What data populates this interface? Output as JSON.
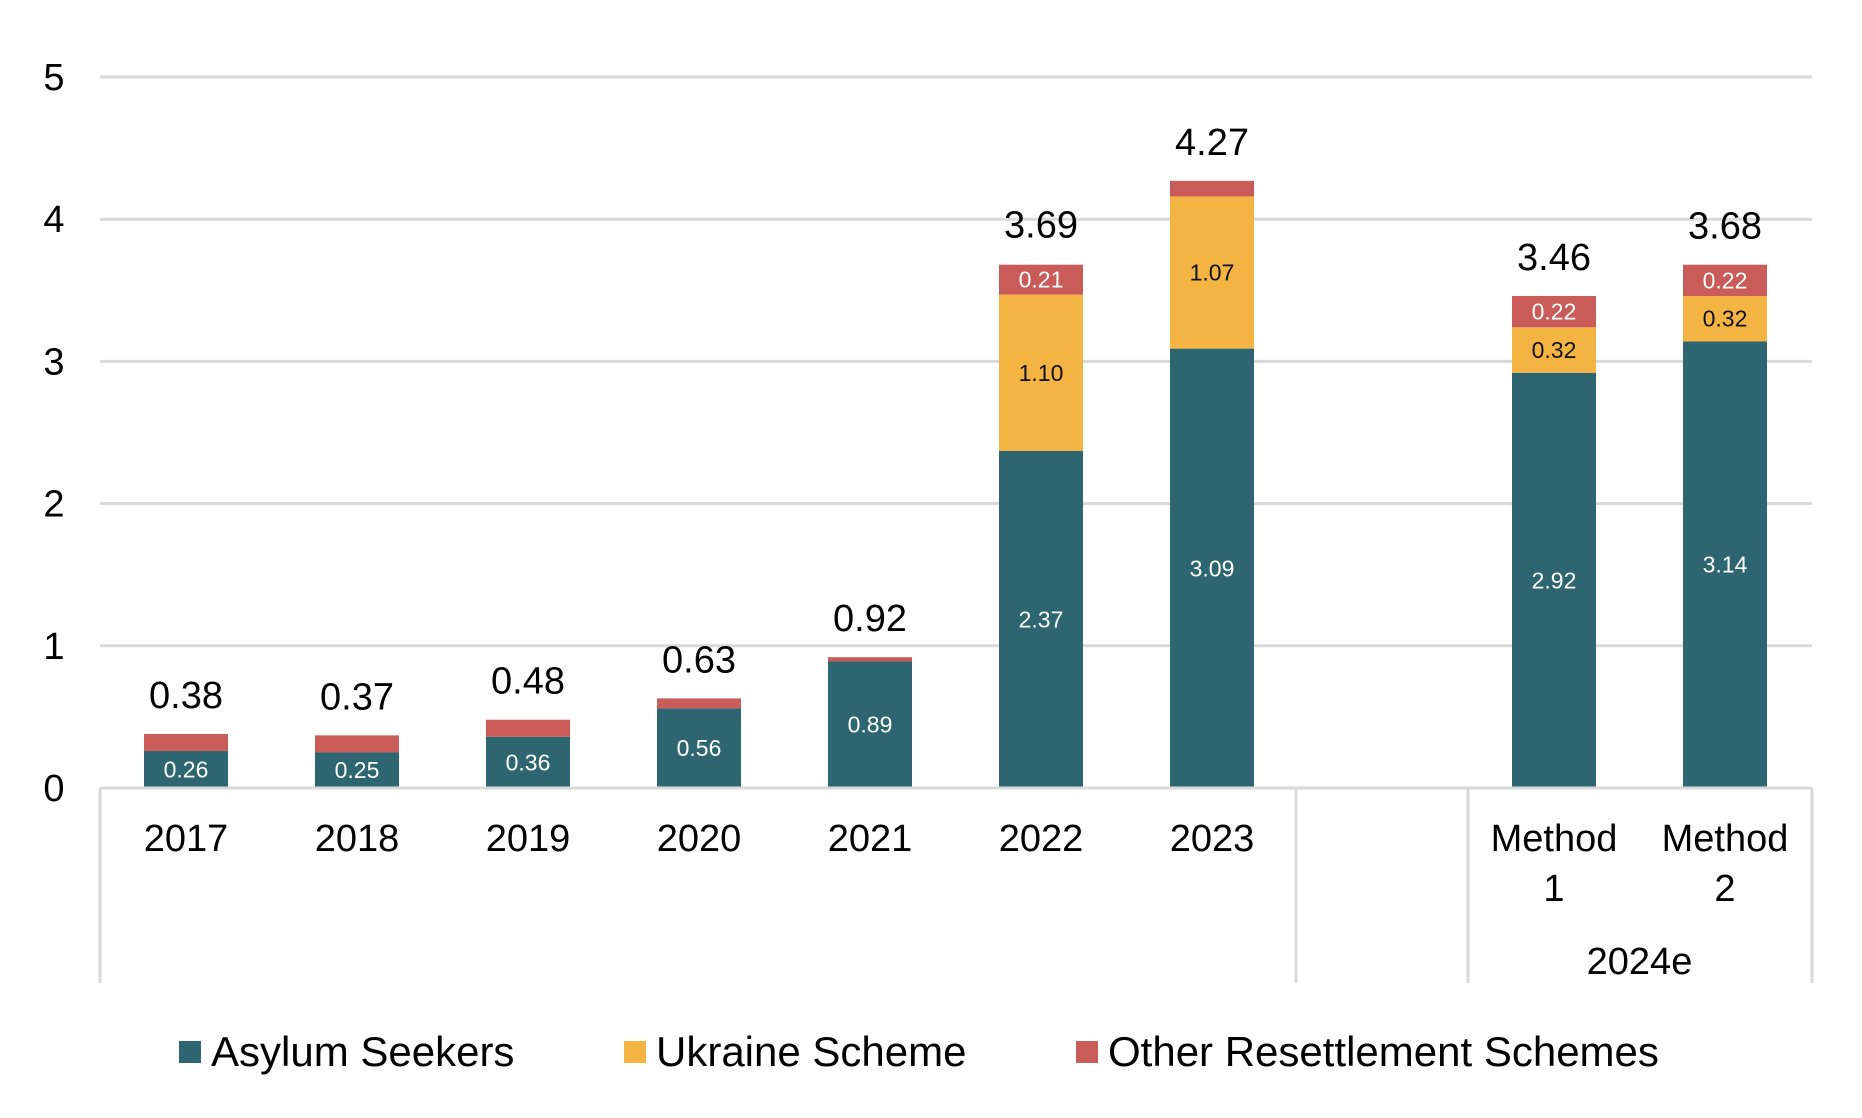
{
  "chart_data": {
    "type": "bar",
    "stacked": true,
    "title": "",
    "xlabel": "",
    "ylabel": "",
    "ylim": [
      0,
      5
    ],
    "yticks": [
      0,
      1,
      2,
      3,
      4,
      5
    ],
    "grid": true,
    "legend_position": "bottom",
    "categories": [
      "2017",
      "2018",
      "2019",
      "2020",
      "2021",
      "2022",
      "2023",
      "Method 1",
      "Method 2"
    ],
    "category_labels": [
      [
        "2017"
      ],
      [
        "2018"
      ],
      [
        "2019"
      ],
      [
        "2020"
      ],
      [
        "2021"
      ],
      [
        "2022"
      ],
      [
        "2023"
      ],
      [
        "Method",
        "1"
      ],
      [
        "Method",
        "2"
      ]
    ],
    "group_label": "2024e",
    "series": [
      {
        "name": "Asylum Seekers",
        "color": "#2d6670",
        "values": [
          0.26,
          0.25,
          0.36,
          0.56,
          0.89,
          2.37,
          3.09,
          2.92,
          3.14
        ],
        "labels": [
          "0.26",
          "0.25",
          "0.36",
          "0.56",
          "0.89",
          "2.37",
          "3.09",
          "2.92",
          "3.14"
        ],
        "label_color": "#ffffff"
      },
      {
        "name": "Ukraine Scheme",
        "color": "#f4b443",
        "values": [
          0,
          0,
          0,
          0,
          0,
          1.1,
          1.07,
          0.32,
          0.32
        ],
        "labels": [
          "",
          "",
          "",
          "",
          "",
          "1.10",
          "1.07",
          "0.32",
          "0.32"
        ],
        "label_color": "#111111"
      },
      {
        "name": "Other Resettlement Schemes",
        "color": "#c95b59",
        "values": [
          0.12,
          0.12,
          0.12,
          0.07,
          0.03,
          0.21,
          0.11,
          0.22,
          0.22
        ],
        "labels": [
          "",
          "",
          "",
          "",
          "",
          "0.21",
          "",
          "0.22",
          "0.22"
        ],
        "label_color": "#ffffff"
      }
    ],
    "totals": [
      0.38,
      0.37,
      0.48,
      0.63,
      0.92,
      3.69,
      4.27,
      3.46,
      3.68
    ],
    "total_labels": [
      "0.38",
      "0.37",
      "0.48",
      "0.63",
      "0.92",
      "3.69",
      "4.27",
      "3.46",
      "3.68"
    ]
  }
}
